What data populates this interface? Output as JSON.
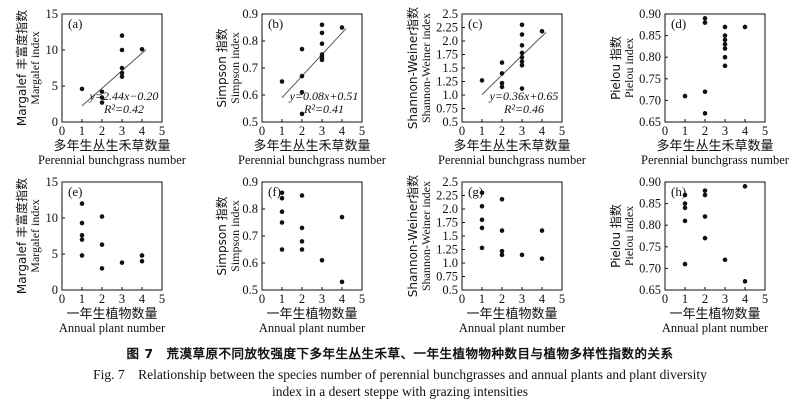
{
  "caption": {
    "cn": "图 7　荒漠草原不同放牧强度下多年生丛生禾草、一年生植物物种数目与植物多样性指数的关系",
    "en_line1": "Fig. 7　Relationship between the species number of perennial bunchgrasses and annual plants and plant diversity",
    "en_line2": "index in a desert steppe with grazing intensities"
  },
  "chart_data": [
    {
      "panel": "(a)",
      "type": "scatter",
      "xlabel_cn": "多年生丛生禾草数量",
      "xlabel_en": "Perennial bunchgrass number",
      "ylabel_cn": "Margalef 丰富度指数",
      "ylabel_en": "Margalef index",
      "xlim": [
        0,
        5
      ],
      "ylim": [
        0,
        15
      ],
      "xticks": [
        0,
        1,
        2,
        3,
        4,
        5
      ],
      "yticks": [
        0,
        5,
        10,
        15
      ],
      "points": [
        [
          1,
          4.6
        ],
        [
          2,
          4.2
        ],
        [
          2,
          3.4
        ],
        [
          2,
          2.7
        ],
        [
          3,
          12.0
        ],
        [
          3,
          10.0
        ],
        [
          3,
          7.5
        ],
        [
          3,
          6.8
        ],
        [
          3,
          6.3
        ],
        [
          4,
          10.1
        ]
      ],
      "fit": {
        "slope": 2.44,
        "intercept": -0.2,
        "x": [
          1,
          4.2
        ]
      },
      "equation": "y=2.44x−0.20",
      "r2": "R²=0.42"
    },
    {
      "panel": "(b)",
      "type": "scatter",
      "xlabel_cn": "多年生丛生禾草数量",
      "xlabel_en": "Perennial bunchgrass number",
      "ylabel_cn": "Simpson 指数",
      "ylabel_en": "Simpson index",
      "xlim": [
        0,
        5
      ],
      "ylim": [
        0.5,
        0.9
      ],
      "xticks": [
        0,
        1,
        2,
        3,
        4,
        5
      ],
      "yticks": [
        0.5,
        0.6,
        0.7,
        0.8,
        0.9
      ],
      "points": [
        [
          1,
          0.65
        ],
        [
          2,
          0.77
        ],
        [
          2,
          0.67
        ],
        [
          2,
          0.61
        ],
        [
          2,
          0.53
        ],
        [
          3,
          0.86
        ],
        [
          3,
          0.83
        ],
        [
          3,
          0.79
        ],
        [
          3,
          0.75
        ],
        [
          3,
          0.74
        ],
        [
          3,
          0.73
        ],
        [
          4,
          0.85
        ]
      ],
      "fit": {
        "slope": 0.08,
        "intercept": 0.51,
        "x": [
          1,
          4.2
        ]
      },
      "equation": "y=0.08x+0.51",
      "r2": "R²=0.41"
    },
    {
      "panel": "(c)",
      "type": "scatter",
      "xlabel_cn": "多年生丛生禾草数量",
      "xlabel_en": "Perennial bunchgrass number",
      "ylabel_cn": "Shannon-Weiner指数",
      "ylabel_en": "Shannon-Weiner index",
      "xlim": [
        0,
        5
      ],
      "ylim": [
        0.5,
        2.5
      ],
      "xticks": [
        0,
        1,
        2,
        3,
        4,
        5
      ],
      "yticks": [
        0.5,
        0.75,
        1.0,
        1.25,
        1.5,
        1.75,
        2.0,
        2.25,
        2.5
      ],
      "ytick_labels": [
        "0.5",
        "0.75",
        "1.0",
        "1.25",
        "1.5",
        "1.75",
        "2.0",
        "2.25",
        "2.5"
      ],
      "points": [
        [
          1,
          1.27
        ],
        [
          2,
          1.6
        ],
        [
          2,
          1.4
        ],
        [
          2,
          1.22
        ],
        [
          2,
          1.15
        ],
        [
          3,
          2.3
        ],
        [
          3,
          2.12
        ],
        [
          3,
          1.92
        ],
        [
          3,
          1.78
        ],
        [
          3,
          1.7
        ],
        [
          3,
          1.62
        ],
        [
          3,
          1.55
        ],
        [
          3,
          1.12
        ],
        [
          4,
          2.18
        ]
      ],
      "fit": {
        "slope": 0.36,
        "intercept": 0.65,
        "x": [
          1,
          4.2
        ]
      },
      "equation": "y=0.36x+0.65",
      "r2": "R²=0.46"
    },
    {
      "panel": "(d)",
      "type": "scatter",
      "xlabel_cn": "多年生丛生禾草数量",
      "xlabel_en": "Perennial bunchgrass number",
      "ylabel_cn": "Pielou 指数",
      "ylabel_en": "Pielou index",
      "xlim": [
        0,
        5
      ],
      "ylim": [
        0.65,
        0.9
      ],
      "xticks": [
        0,
        1,
        2,
        3,
        4,
        5
      ],
      "yticks": [
        0.65,
        0.7,
        0.75,
        0.8,
        0.85,
        0.9
      ],
      "ytick_labels": [
        "0.65",
        "0.70",
        "0.75",
        "0.80",
        "0.85",
        "0.90"
      ],
      "points": [
        [
          1,
          0.71
        ],
        [
          2,
          0.89
        ],
        [
          2,
          0.88
        ],
        [
          2,
          0.72
        ],
        [
          2,
          0.67
        ],
        [
          3,
          0.87
        ],
        [
          3,
          0.85
        ],
        [
          3,
          0.84
        ],
        [
          3,
          0.83
        ],
        [
          3,
          0.82
        ],
        [
          3,
          0.8
        ],
        [
          3,
          0.78
        ],
        [
          4,
          0.87
        ]
      ]
    },
    {
      "panel": "(e)",
      "type": "scatter",
      "xlabel_cn": "一年生植物数量",
      "xlabel_en": "Annual plant number",
      "ylabel_cn": "Margalef 丰富度指数",
      "ylabel_en": "Margalef index",
      "xlim": [
        0,
        5
      ],
      "ylim": [
        0,
        15
      ],
      "xticks": [
        0,
        1,
        2,
        3,
        4,
        5
      ],
      "yticks": [
        0,
        5,
        10,
        15
      ],
      "points": [
        [
          1,
          12.0
        ],
        [
          1,
          9.3
        ],
        [
          1,
          7.6
        ],
        [
          1,
          7.0
        ],
        [
          1,
          4.8
        ],
        [
          2,
          10.2
        ],
        [
          2,
          6.3
        ],
        [
          2,
          3.0
        ],
        [
          3,
          3.8
        ],
        [
          4,
          4.8
        ],
        [
          4,
          4.0
        ]
      ]
    },
    {
      "panel": "(f)",
      "type": "scatter",
      "xlabel_cn": "一年生植物数量",
      "xlabel_en": "Annual plant number",
      "ylabel_cn": "Simpson 指数",
      "ylabel_en": "Simpson index",
      "xlim": [
        0,
        5
      ],
      "ylim": [
        0.5,
        0.9
      ],
      "xticks": [
        0,
        1,
        2,
        3,
        4,
        5
      ],
      "yticks": [
        0.5,
        0.6,
        0.7,
        0.8,
        0.9
      ],
      "points": [
        [
          1,
          0.86
        ],
        [
          1,
          0.84
        ],
        [
          1,
          0.79
        ],
        [
          1,
          0.75
        ],
        [
          1,
          0.65
        ],
        [
          2,
          0.85
        ],
        [
          2,
          0.73
        ],
        [
          2,
          0.68
        ],
        [
          2,
          0.65
        ],
        [
          3,
          0.61
        ],
        [
          4,
          0.77
        ],
        [
          4,
          0.53
        ]
      ]
    },
    {
      "panel": "(g)",
      "type": "scatter",
      "xlabel_cn": "一年生植物数量",
      "xlabel_en": "Annual plant number",
      "ylabel_cn": "Shannon-Weiner指数",
      "ylabel_en": "Shannon-Weiner index",
      "xlim": [
        0,
        5
      ],
      "ylim": [
        0.5,
        2.5
      ],
      "xticks": [
        0,
        1,
        2,
        3,
        4,
        5
      ],
      "yticks": [
        0.5,
        0.75,
        1.0,
        1.25,
        1.5,
        1.75,
        2.0,
        2.25,
        2.5
      ],
      "ytick_labels": [
        "0.5",
        "0.75",
        "1.0",
        "1.25",
        "1.5",
        "1.75",
        "2.0",
        "2.25",
        "2.5"
      ],
      "points": [
        [
          1,
          2.3
        ],
        [
          1,
          2.05
        ],
        [
          1,
          1.8
        ],
        [
          1,
          1.65
        ],
        [
          1,
          1.28
        ],
        [
          2,
          2.18
        ],
        [
          2,
          1.6
        ],
        [
          2,
          1.22
        ],
        [
          2,
          1.15
        ],
        [
          3,
          1.15
        ],
        [
          4,
          1.6
        ],
        [
          4,
          1.08
        ]
      ]
    },
    {
      "panel": "(h)",
      "type": "scatter",
      "xlabel_cn": "一年生植物数量",
      "xlabel_en": "Annual plant number",
      "ylabel_cn": "Pielou 指数",
      "ylabel_en": "Pielou index",
      "xlim": [
        0,
        5
      ],
      "ylim": [
        0.65,
        0.9
      ],
      "xticks": [
        0,
        1,
        2,
        3,
        4,
        5
      ],
      "yticks": [
        0.65,
        0.7,
        0.75,
        0.8,
        0.85,
        0.9
      ],
      "ytick_labels": [
        "0.65",
        "0.70",
        "0.75",
        "0.80",
        "0.85",
        "0.90"
      ],
      "points": [
        [
          1,
          0.87
        ],
        [
          1,
          0.85
        ],
        [
          1,
          0.84
        ],
        [
          1,
          0.81
        ],
        [
          1,
          0.71
        ],
        [
          2,
          0.88
        ],
        [
          2,
          0.87
        ],
        [
          2,
          0.82
        ],
        [
          2,
          0.77
        ],
        [
          3,
          0.72
        ],
        [
          4,
          0.89
        ],
        [
          4,
          0.67
        ]
      ]
    }
  ]
}
